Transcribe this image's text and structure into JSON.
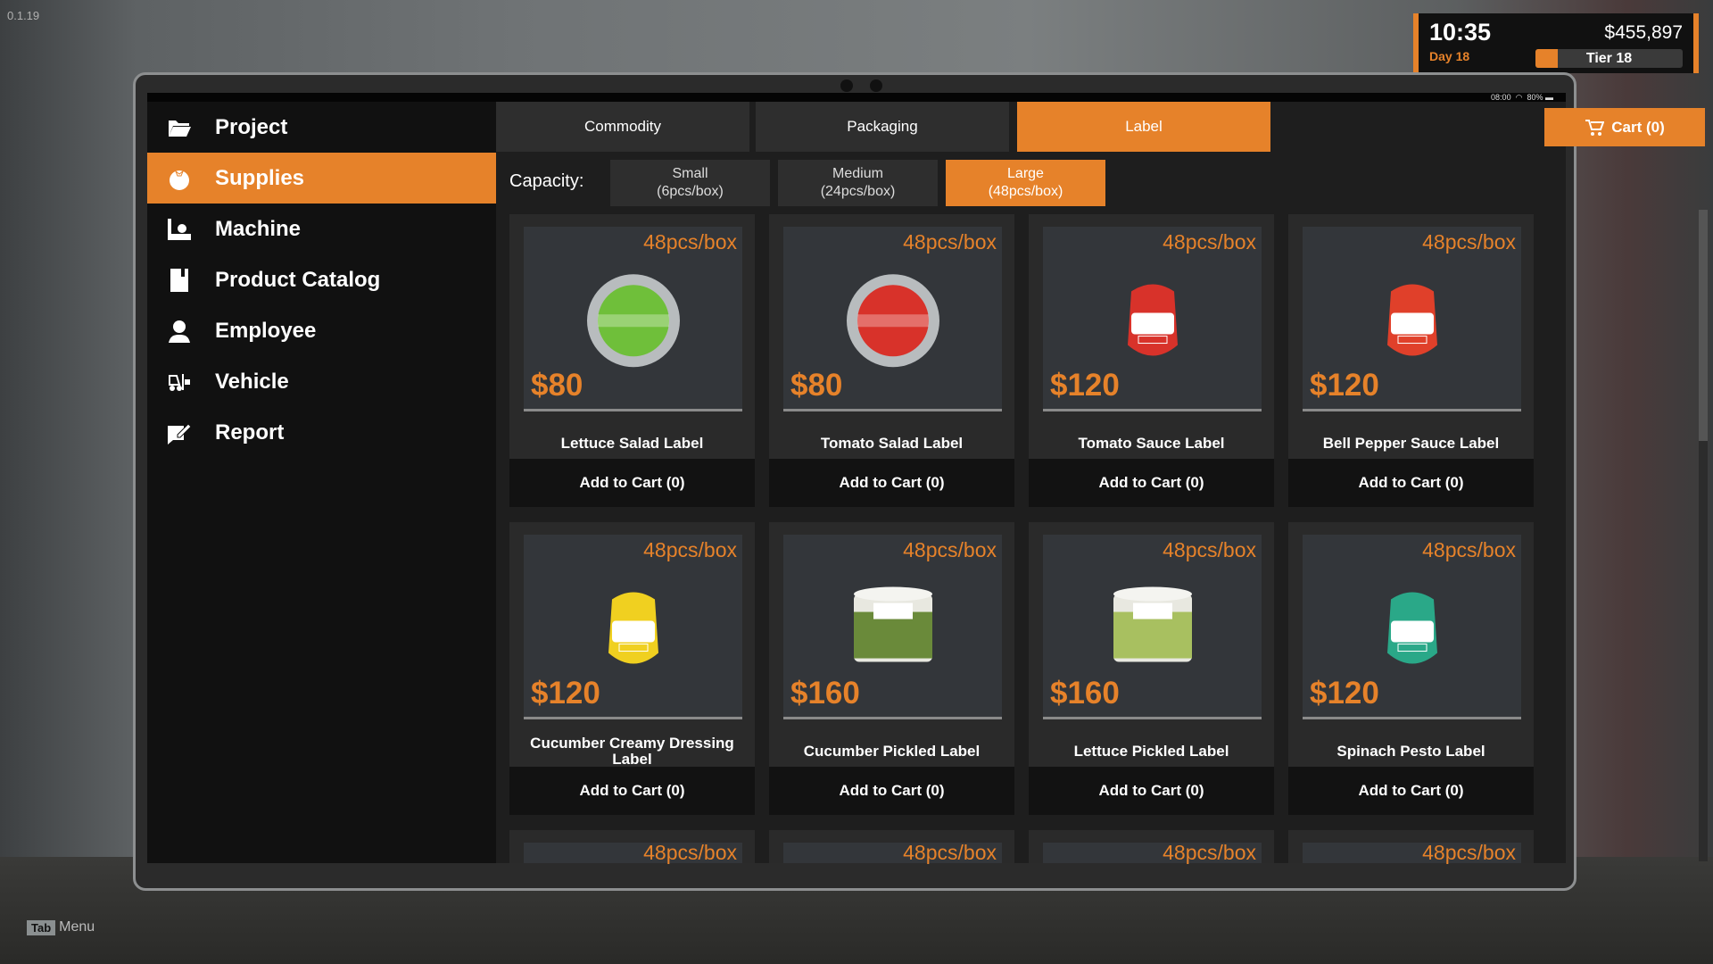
{
  "version": "0.1.19",
  "hint": {
    "key": "Tab",
    "label": "Menu"
  },
  "hud": {
    "time": "10:35",
    "day": "Day 18",
    "money": "$455,897",
    "tier": "Tier 18",
    "tier_progress": 0.15,
    "accent": "#e6822a"
  },
  "statusbar": {
    "clock": "08:00",
    "battery": "80%"
  },
  "sidebar": {
    "items": [
      {
        "label": "Project",
        "icon": "folder-icon"
      },
      {
        "label": "Supplies",
        "icon": "tomato-icon",
        "active": true
      },
      {
        "label": "Machine",
        "icon": "conveyor-icon"
      },
      {
        "label": "Product Catalog",
        "icon": "book-icon"
      },
      {
        "label": "Employee",
        "icon": "worker-icon"
      },
      {
        "label": "Vehicle",
        "icon": "forklift-icon"
      },
      {
        "label": "Report",
        "icon": "report-icon"
      }
    ]
  },
  "tabs": [
    {
      "label": "Commodity"
    },
    {
      "label": "Packaging"
    },
    {
      "label": "Label",
      "active": true
    }
  ],
  "cart": {
    "label": "Cart (0)"
  },
  "capacity": {
    "label": "Capacity:",
    "options": [
      {
        "line1": "Small",
        "line2": "(6pcs/box)"
      },
      {
        "line1": "Medium",
        "line2": "(24pcs/box)"
      },
      {
        "line1": "Large",
        "line2": "(48pcs/box)",
        "active": true
      }
    ]
  },
  "products": [
    {
      "name": "Lettuce Salad Label",
      "pcs": "48pcs/box",
      "price": "$80",
      "button": "Add to Cart (0)",
      "color": "#6fbf3a",
      "shape": "round"
    },
    {
      "name": "Tomato Salad Label",
      "pcs": "48pcs/box",
      "price": "$80",
      "button": "Add to Cart (0)",
      "color": "#d8322a",
      "shape": "round"
    },
    {
      "name": "Tomato Sauce Label",
      "pcs": "48pcs/box",
      "price": "$120",
      "button": "Add to Cart (0)",
      "color": "#d8322a",
      "shape": "pouch"
    },
    {
      "name": "Bell Pepper Sauce Label",
      "pcs": "48pcs/box",
      "price": "$120",
      "button": "Add to Cart (0)",
      "color": "#e0402a",
      "shape": "pouch"
    },
    {
      "name": "Cucumber Creamy Dressing Label",
      "pcs": "48pcs/box",
      "price": "$120",
      "button": "Add to Cart (0)",
      "color": "#f0d020",
      "shape": "pouch"
    },
    {
      "name": "Cucumber Pickled Label",
      "pcs": "48pcs/box",
      "price": "$160",
      "button": "Add to Cart (0)",
      "color": "#6a8a3a",
      "shape": "can"
    },
    {
      "name": "Lettuce Pickled Label",
      "pcs": "48pcs/box",
      "price": "$160",
      "button": "Add to Cart (0)",
      "color": "#a8c060",
      "shape": "can"
    },
    {
      "name": "Spinach Pesto Label",
      "pcs": "48pcs/box",
      "price": "$120",
      "button": "Add to Cart (0)",
      "color": "#2aa888",
      "shape": "pouch"
    },
    {
      "pcs": "48pcs/box"
    },
    {
      "pcs": "48pcs/box"
    },
    {
      "pcs": "48pcs/box"
    },
    {
      "pcs": "48pcs/box"
    }
  ]
}
